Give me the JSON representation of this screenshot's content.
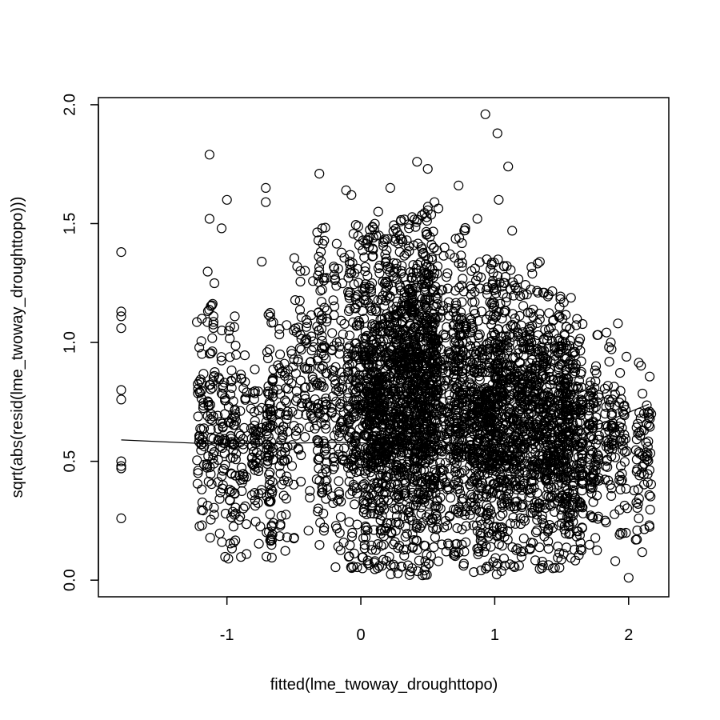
{
  "chart_data": {
    "type": "scatter",
    "title": "",
    "xlabel": "fitted(lme_twoway_droughttopo)",
    "ylabel": "sqrt(abs(resid(lme_twoway_droughttopo)))",
    "xlim": [
      -1.96,
      2.3
    ],
    "ylim": [
      -0.07,
      2.03
    ],
    "x_ticks": [
      -1,
      0,
      1,
      2
    ],
    "y_ticks": [
      0.0,
      0.5,
      1.0,
      1.5,
      2.0
    ],
    "x_tick_labels": [
      "-1",
      "0",
      "1",
      "2"
    ],
    "y_tick_labels": [
      "0.0",
      "0.5",
      "1.0",
      "1.5",
      "2.0"
    ],
    "grid": false,
    "marker": "open-circle",
    "point_color": "#000000",
    "highlighted_points": [
      {
        "x": 0.93,
        "y": 1.96
      },
      {
        "x": 1.02,
        "y": 1.88
      },
      {
        "x": 1.1,
        "y": 1.74
      },
      {
        "x": 0.42,
        "y": 1.76
      },
      {
        "x": 0.5,
        "y": 1.73
      },
      {
        "x": -1.13,
        "y": 1.79
      },
      {
        "x": -0.31,
        "y": 1.71
      },
      {
        "x": 0.73,
        "y": 1.66
      },
      {
        "x": 0.22,
        "y": 1.65
      },
      {
        "x": -0.71,
        "y": 1.65
      },
      {
        "x": -0.71,
        "y": 1.59
      },
      {
        "x": -0.07,
        "y": 1.62
      },
      {
        "x": -0.11,
        "y": 1.64
      },
      {
        "x": -1.0,
        "y": 1.6
      },
      {
        "x": -1.13,
        "y": 1.52
      },
      {
        "x": -1.04,
        "y": 1.48
      },
      {
        "x": -0.74,
        "y": 1.34
      },
      {
        "x": -1.79,
        "y": 1.38
      },
      {
        "x": -1.79,
        "y": 1.13
      },
      {
        "x": -1.79,
        "y": 1.11
      },
      {
        "x": -1.79,
        "y": 1.06
      },
      {
        "x": -1.79,
        "y": 0.8
      },
      {
        "x": -1.79,
        "y": 0.76
      },
      {
        "x": -1.79,
        "y": 0.5
      },
      {
        "x": -1.79,
        "y": 0.48
      },
      {
        "x": -1.79,
        "y": 0.47
      },
      {
        "x": -1.79,
        "y": 0.26
      },
      {
        "x": 2.0,
        "y": 0.01
      },
      {
        "x": 1.9,
        "y": 0.08
      },
      {
        "x": 1.92,
        "y": 1.08
      },
      {
        "x": 1.03,
        "y": 1.6
      },
      {
        "x": 1.13,
        "y": 1.47
      },
      {
        "x": 0.87,
        "y": 1.52
      },
      {
        "x": 0.55,
        "y": 1.59
      },
      {
        "x": 0.13,
        "y": 1.55
      }
    ],
    "columns": [
      {
        "x": -1.2,
        "spread": 0.03,
        "ymin": 0.07,
        "ymax": 1.25,
        "count": 45
      },
      {
        "x": -1.12,
        "spread": 0.03,
        "ymin": 0.07,
        "ymax": 1.35,
        "count": 55
      },
      {
        "x": -1.04,
        "spread": 0.03,
        "ymin": 0.07,
        "ymax": 1.14,
        "count": 45
      },
      {
        "x": -0.96,
        "spread": 0.03,
        "ymin": 0.03,
        "ymax": 1.15,
        "count": 65
      },
      {
        "x": -0.88,
        "spread": 0.03,
        "ymin": 0.07,
        "ymax": 0.95,
        "count": 35
      },
      {
        "x": -0.78,
        "spread": 0.04,
        "ymin": 0.14,
        "ymax": 0.93,
        "count": 55
      },
      {
        "x": -0.68,
        "spread": 0.03,
        "ymin": 0.07,
        "ymax": 1.14,
        "count": 90
      },
      {
        "x": -0.58,
        "spread": 0.04,
        "ymin": 0.12,
        "ymax": 1.1,
        "count": 60
      },
      {
        "x": -0.48,
        "spread": 0.04,
        "ymin": 0.05,
        "ymax": 1.45,
        "count": 45
      },
      {
        "x": -0.38,
        "spread": 0.04,
        "ymin": 0.2,
        "ymax": 1.4,
        "count": 45
      },
      {
        "x": -0.29,
        "spread": 0.04,
        "ymin": 0.1,
        "ymax": 1.5,
        "count": 110
      },
      {
        "x": -0.17,
        "spread": 0.05,
        "ymin": 0.05,
        "ymax": 1.5,
        "count": 90
      },
      {
        "x": -0.05,
        "spread": 0.05,
        "ymin": 0.05,
        "ymax": 1.5,
        "count": 160
      },
      {
        "x": 0.06,
        "spread": 0.05,
        "ymin": 0.03,
        "ymax": 1.5,
        "count": 260
      },
      {
        "x": 0.17,
        "spread": 0.06,
        "ymin": 0.02,
        "ymax": 1.45,
        "count": 330
      },
      {
        "x": 0.3,
        "spread": 0.06,
        "ymin": 0.02,
        "ymax": 1.55,
        "count": 350
      },
      {
        "x": 0.42,
        "spread": 0.06,
        "ymin": 0.02,
        "ymax": 1.58,
        "count": 380
      },
      {
        "x": 0.53,
        "spread": 0.05,
        "ymin": 0.02,
        "ymax": 1.58,
        "count": 320
      },
      {
        "x": 0.63,
        "spread": 0.04,
        "ymin": 0.05,
        "ymax": 1.4,
        "count": 110
      },
      {
        "x": 0.74,
        "spread": 0.05,
        "ymin": 0.03,
        "ymax": 1.5,
        "count": 230
      },
      {
        "x": 0.86,
        "spread": 0.05,
        "ymin": 0.03,
        "ymax": 1.35,
        "count": 230
      },
      {
        "x": 0.97,
        "spread": 0.05,
        "ymin": 0.02,
        "ymax": 1.35,
        "count": 260
      },
      {
        "x": 1.07,
        "spread": 0.05,
        "ymin": 0.03,
        "ymax": 1.35,
        "count": 230
      },
      {
        "x": 1.18,
        "spread": 0.05,
        "ymin": 0.03,
        "ymax": 1.3,
        "count": 200
      },
      {
        "x": 1.29,
        "spread": 0.05,
        "ymin": 0.03,
        "ymax": 1.37,
        "count": 200
      },
      {
        "x": 1.4,
        "spread": 0.05,
        "ymin": 0.05,
        "ymax": 1.25,
        "count": 200
      },
      {
        "x": 1.52,
        "spread": 0.05,
        "ymin": 0.05,
        "ymax": 1.2,
        "count": 250
      },
      {
        "x": 1.62,
        "spread": 0.04,
        "ymin": 0.05,
        "ymax": 1.1,
        "count": 140
      },
      {
        "x": 1.74,
        "spread": 0.04,
        "ymin": 0.1,
        "ymax": 1.05,
        "count": 90
      },
      {
        "x": 1.86,
        "spread": 0.04,
        "ymin": 0.2,
        "ymax": 1.08,
        "count": 60
      },
      {
        "x": 1.96,
        "spread": 0.03,
        "ymin": 0.15,
        "ymax": 0.95,
        "count": 40
      },
      {
        "x": 2.08,
        "spread": 0.04,
        "ymin": 0.1,
        "ymax": 0.95,
        "count": 40
      },
      {
        "x": 2.15,
        "spread": 0.02,
        "ymin": 0.12,
        "ymax": 0.95,
        "count": 30
      }
    ],
    "smooth_line": [
      {
        "x": -1.79,
        "y": 0.59
      },
      {
        "x": -1.2,
        "y": 0.575
      },
      {
        "x": -0.6,
        "y": 0.575
      },
      {
        "x": -0.2,
        "y": 0.58
      },
      {
        "x": 0.2,
        "y": 0.575
      },
      {
        "x": 0.6,
        "y": 0.565
      },
      {
        "x": 1.0,
        "y": 0.57
      },
      {
        "x": 1.4,
        "y": 0.6
      },
      {
        "x": 1.8,
        "y": 0.66
      },
      {
        "x": 2.15,
        "y": 0.74
      }
    ]
  }
}
